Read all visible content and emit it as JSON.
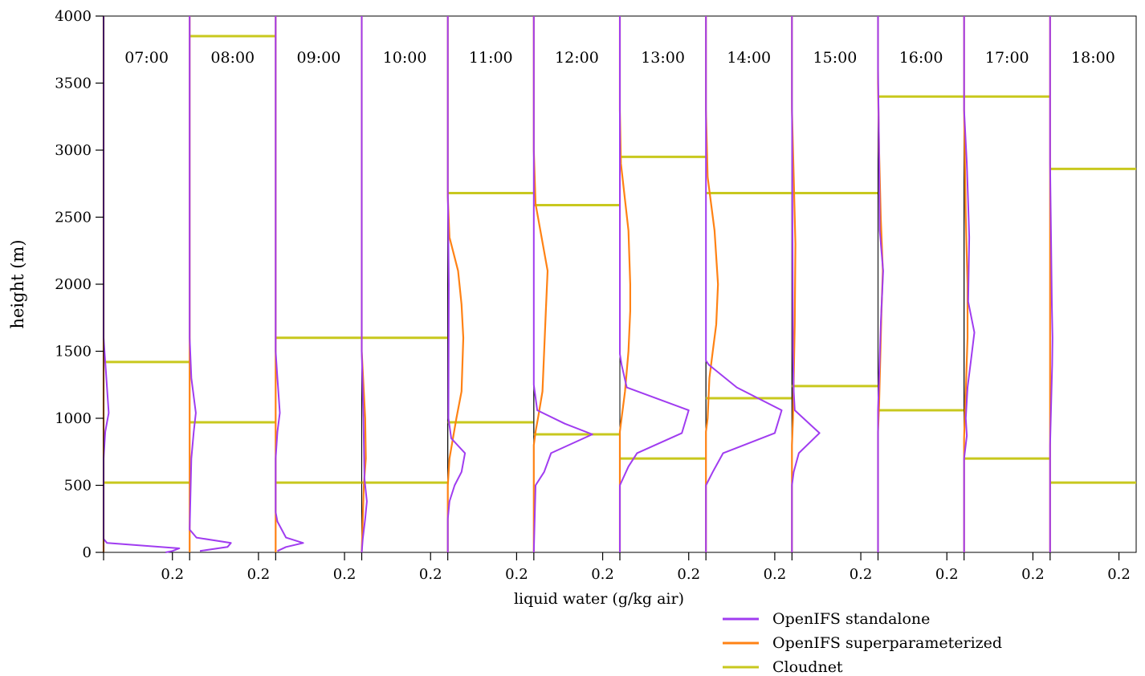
{
  "chart_data": {
    "type": "line",
    "ylabel": "height (m)",
    "xlabel": "liquid water (g/kg air)",
    "ylim": [
      0,
      4000
    ],
    "yticks": [
      0,
      500,
      1000,
      1500,
      2000,
      2500,
      3000,
      3500,
      4000
    ],
    "xlim": [
      0,
      0.25
    ],
    "xtick_value": 0.2,
    "xtick_label": "0.2",
    "grid": false,
    "legend_position": "bottom-right",
    "series_styles": [
      {
        "name": "OpenIFS standalone",
        "color": "#a03cf0"
      },
      {
        "name": "OpenIFS superparameterized",
        "color": "#ff8214"
      },
      {
        "name": "Cloudnet",
        "color": "#c8c81e"
      }
    ],
    "panels": [
      {
        "time": "07:00",
        "standalone": [
          [
            0,
            4000
          ],
          [
            0,
            1600
          ],
          [
            0.005,
            1420
          ],
          [
            0.015,
            1040
          ],
          [
            0.005,
            900
          ],
          [
            0,
            700
          ],
          [
            0,
            100
          ],
          [
            0.01,
            70
          ],
          [
            0.22,
            30
          ],
          [
            0.2,
            10
          ],
          [
            0.18,
            0
          ]
        ],
        "superparameterized": [
          [
            0,
            4000
          ],
          [
            0,
            0
          ]
        ],
        "cloudnet": [
          520,
          1420
        ]
      },
      {
        "time": "08:00",
        "standalone": [
          [
            0,
            4000
          ],
          [
            0,
            1600
          ],
          [
            0.005,
            1300
          ],
          [
            0.018,
            1040
          ],
          [
            0.012,
            900
          ],
          [
            0.005,
            700
          ],
          [
            0,
            170
          ],
          [
            0.02,
            110
          ],
          [
            0.12,
            70
          ],
          [
            0.11,
            40
          ],
          [
            0.03,
            10
          ]
        ],
        "superparameterized": [
          [
            0,
            4000
          ],
          [
            0,
            0
          ]
        ],
        "cloudnet": [
          970,
          3850
        ]
      },
      {
        "time": "09:00",
        "standalone": [
          [
            0,
            4000
          ],
          [
            0,
            1500
          ],
          [
            0.005,
            1300
          ],
          [
            0.012,
            1040
          ],
          [
            0.005,
            900
          ],
          [
            0,
            700
          ],
          [
            0,
            300
          ],
          [
            0.005,
            230
          ],
          [
            0.03,
            110
          ],
          [
            0.08,
            70
          ],
          [
            0.03,
            40
          ],
          [
            0.005,
            10
          ]
        ],
        "superparameterized": [
          [
            0,
            4000
          ],
          [
            0,
            0
          ]
        ],
        "cloudnet": [
          520,
          1600
        ]
      },
      {
        "time": "10:00",
        "standalone": [
          [
            0,
            4000
          ],
          [
            0,
            1500
          ],
          [
            0.005,
            1000
          ],
          [
            0.008,
            550
          ],
          [
            0.015,
            380
          ],
          [
            0.01,
            250
          ],
          [
            0.003,
            100
          ],
          [
            0,
            0
          ]
        ],
        "superparameterized": [
          [
            0,
            4000
          ],
          [
            0,
            1500
          ],
          [
            0.01,
            1000
          ],
          [
            0.012,
            700
          ],
          [
            0.006,
            500
          ],
          [
            0,
            0
          ]
        ],
        "cloudnet": [
          520,
          1600
        ]
      },
      {
        "time": "11:00",
        "standalone": [
          [
            0,
            4000
          ],
          [
            0,
            2700
          ],
          [
            0.003,
            2000
          ],
          [
            0.002,
            1000
          ],
          [
            0.01,
            850
          ],
          [
            0.05,
            740
          ],
          [
            0.04,
            600
          ],
          [
            0.02,
            500
          ],
          [
            0.005,
            380
          ],
          [
            0,
            250
          ],
          [
            0,
            0
          ]
        ],
        "superparameterized": [
          [
            0,
            4000
          ],
          [
            0,
            2650
          ],
          [
            0.005,
            2350
          ],
          [
            0.03,
            2100
          ],
          [
            0.04,
            1850
          ],
          [
            0.045,
            1600
          ],
          [
            0.04,
            1200
          ],
          [
            0.025,
            1000
          ],
          [
            0.015,
            850
          ],
          [
            0.005,
            700
          ],
          [
            0,
            500
          ],
          [
            0,
            0
          ]
        ],
        "cloudnet": [
          970,
          2680
        ]
      },
      {
        "time": "12:00",
        "standalone": [
          [
            0,
            4000
          ],
          [
            0,
            1250
          ],
          [
            0.01,
            1060
          ],
          [
            0.09,
            960
          ],
          [
            0.17,
            880
          ],
          [
            0.05,
            740
          ],
          [
            0.03,
            600
          ],
          [
            0.005,
            500
          ],
          [
            0,
            0
          ]
        ],
        "superparameterized": [
          [
            0,
            4000
          ],
          [
            0,
            3000
          ],
          [
            0.005,
            2600
          ],
          [
            0.04,
            2100
          ],
          [
            0.035,
            1800
          ],
          [
            0.03,
            1500
          ],
          [
            0.025,
            1200
          ],
          [
            0.012,
            1000
          ],
          [
            0.005,
            900
          ],
          [
            0,
            800
          ],
          [
            0,
            0
          ]
        ],
        "cloudnet": [
          880,
          2590
        ]
      },
      {
        "time": "13:00",
        "standalone": [
          [
            0,
            4000
          ],
          [
            0,
            1480
          ],
          [
            0.005,
            1400
          ],
          [
            0.02,
            1230
          ],
          [
            0.2,
            1060
          ],
          [
            0.18,
            890
          ],
          [
            0.05,
            740
          ],
          [
            0.025,
            640
          ],
          [
            0,
            500
          ],
          [
            0,
            0
          ]
        ],
        "superparameterized": [
          [
            0,
            4000
          ],
          [
            0,
            3300
          ],
          [
            0.003,
            2900
          ],
          [
            0.025,
            2400
          ],
          [
            0.03,
            2000
          ],
          [
            0.03,
            1800
          ],
          [
            0.025,
            1500
          ],
          [
            0.015,
            1200
          ],
          [
            0.005,
            1000
          ],
          [
            0,
            900
          ],
          [
            0,
            0
          ]
        ],
        "cloudnet": [
          700,
          2950
        ]
      },
      {
        "time": "14:00",
        "standalone": [
          [
            0,
            4000
          ],
          [
            0,
            1430
          ],
          [
            0.008,
            1400
          ],
          [
            0.09,
            1230
          ],
          [
            0.22,
            1060
          ],
          [
            0.2,
            890
          ],
          [
            0.05,
            740
          ],
          [
            0.02,
            600
          ],
          [
            0,
            500
          ],
          [
            0,
            0
          ]
        ],
        "superparameterized": [
          [
            0,
            4000
          ],
          [
            0,
            3300
          ],
          [
            0.005,
            2800
          ],
          [
            0.025,
            2400
          ],
          [
            0.035,
            2000
          ],
          [
            0.03,
            1700
          ],
          [
            0.02,
            1500
          ],
          [
            0.01,
            1300
          ],
          [
            0.005,
            1000
          ],
          [
            0,
            900
          ],
          [
            0,
            0
          ]
        ],
        "cloudnet": [
          1150,
          2680
        ]
      },
      {
        "time": "15:00",
        "standalone": [
          [
            0,
            4000
          ],
          [
            0,
            3400
          ],
          [
            0.003,
            1500
          ],
          [
            0.005,
            1200
          ],
          [
            0.008,
            1060
          ],
          [
            0.08,
            890
          ],
          [
            0.02,
            740
          ],
          [
            0.005,
            600
          ],
          [
            0,
            500
          ],
          [
            0,
            0
          ]
        ],
        "superparameterized": [
          [
            0,
            4000
          ],
          [
            0,
            3300
          ],
          [
            0.005,
            2800
          ],
          [
            0.01,
            2300
          ],
          [
            0.008,
            1700
          ],
          [
            0.005,
            1300
          ],
          [
            0.003,
            1000
          ],
          [
            0,
            800
          ],
          [
            0,
            0
          ]
        ],
        "cloudnet": [
          1240,
          2680
        ]
      },
      {
        "time": "16:00",
        "standalone": [
          [
            0,
            4000
          ],
          [
            0,
            3600
          ],
          [
            0.003,
            3000
          ],
          [
            0.005,
            2400
          ],
          [
            0.015,
            2100
          ],
          [
            0.008,
            1700
          ],
          [
            0.003,
            1300
          ],
          [
            0,
            1060
          ],
          [
            0,
            0
          ]
        ],
        "superparameterized": [
          [
            0,
            4000
          ],
          [
            0,
            3500
          ],
          [
            0.003,
            3000
          ],
          [
            0.008,
            2500
          ],
          [
            0.014,
            2100
          ],
          [
            0.01,
            1800
          ],
          [
            0.006,
            1400
          ],
          [
            0.003,
            1100
          ],
          [
            0,
            900
          ],
          [
            0,
            0
          ]
        ],
        "cloudnet": [
          1060,
          3400
        ]
      },
      {
        "time": "17:00",
        "standalone": [
          [
            0,
            4000
          ],
          [
            0,
            3300
          ],
          [
            0.008,
            2900
          ],
          [
            0.012,
            2600
          ],
          [
            0.015,
            2350
          ],
          [
            0.012,
            1870
          ],
          [
            0.03,
            1640
          ],
          [
            0.02,
            1430
          ],
          [
            0.01,
            1230
          ],
          [
            0.005,
            1000
          ],
          [
            0.008,
            870
          ],
          [
            0,
            700
          ],
          [
            0,
            0
          ]
        ],
        "superparameterized": [
          [
            0,
            4000
          ],
          [
            0,
            3300
          ],
          [
            0.005,
            2500
          ],
          [
            0.01,
            2000
          ],
          [
            0.01,
            1600
          ],
          [
            0.005,
            1200
          ],
          [
            0.002,
            1000
          ],
          [
            0,
            850
          ],
          [
            0,
            0
          ]
        ],
        "cloudnet": [
          700,
          3400
        ]
      },
      {
        "time": "18:00",
        "standalone": [
          [
            0,
            4000
          ],
          [
            0,
            2900
          ],
          [
            0.003,
            2300
          ],
          [
            0.005,
            1850
          ],
          [
            0.007,
            1600
          ],
          [
            0.006,
            1400
          ],
          [
            0.003,
            1100
          ],
          [
            0,
            800
          ],
          [
            0,
            0
          ]
        ],
        "superparameterized": [
          [
            0,
            4000
          ],
          [
            0,
            0
          ]
        ],
        "cloudnet": [
          520,
          2860
        ]
      }
    ]
  }
}
